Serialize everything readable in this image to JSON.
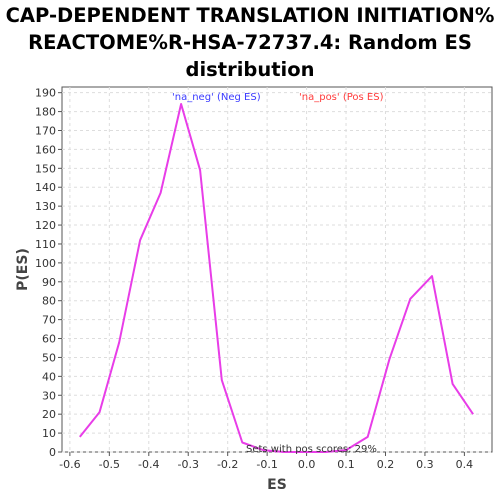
{
  "chart_data": {
    "type": "line",
    "title_lines": [
      "CAP-DEPENDENT TRANSLATION INITIATION%",
      "REACTOME%R-HSA-72737.4: Random ES",
      "distribution"
    ],
    "xlabel": "ES",
    "ylabel": "P(ES)",
    "xlim": [
      -0.62,
      0.47
    ],
    "ylim": [
      0,
      193
    ],
    "xticks": [
      -0.6,
      -0.5,
      -0.4,
      -0.3,
      -0.2,
      -0.1,
      0.0,
      0.1,
      0.2,
      0.3,
      0.4
    ],
    "xtick_labels": [
      "-0.6",
      "-0.5",
      "-0.4",
      "-0.3",
      "-0.2",
      "-0.1",
      "0.0",
      "0.1",
      "0.2",
      "0.3",
      "0.4"
    ],
    "yticks": [
      0,
      10,
      20,
      30,
      40,
      50,
      60,
      70,
      80,
      90,
      100,
      110,
      120,
      130,
      140,
      150,
      160,
      170,
      180,
      190
    ],
    "grid": true,
    "legend": [
      {
        "label": "'na_neg' (Neg ES)",
        "color": "#3b3bff"
      },
      {
        "label": "'na_pos' (Pos ES)",
        "color": "#ff3b3b"
      }
    ],
    "series": [
      {
        "color": "#e83de8",
        "x": [
          -0.575,
          -0.525,
          -0.475,
          -0.422,
          -0.37,
          -0.318,
          -0.27,
          -0.215,
          -0.163,
          -0.11,
          -0.058,
          -0.005,
          0.048,
          0.1,
          0.155,
          0.21,
          0.263,
          0.318,
          0.37,
          0.422
        ],
        "y": [
          8,
          21,
          58,
          112,
          137,
          184,
          149,
          38,
          5,
          1,
          0,
          0,
          0,
          1,
          8,
          49,
          81,
          93,
          36,
          20
        ]
      }
    ],
    "annotation": "Sets with pos scores: 29%"
  }
}
